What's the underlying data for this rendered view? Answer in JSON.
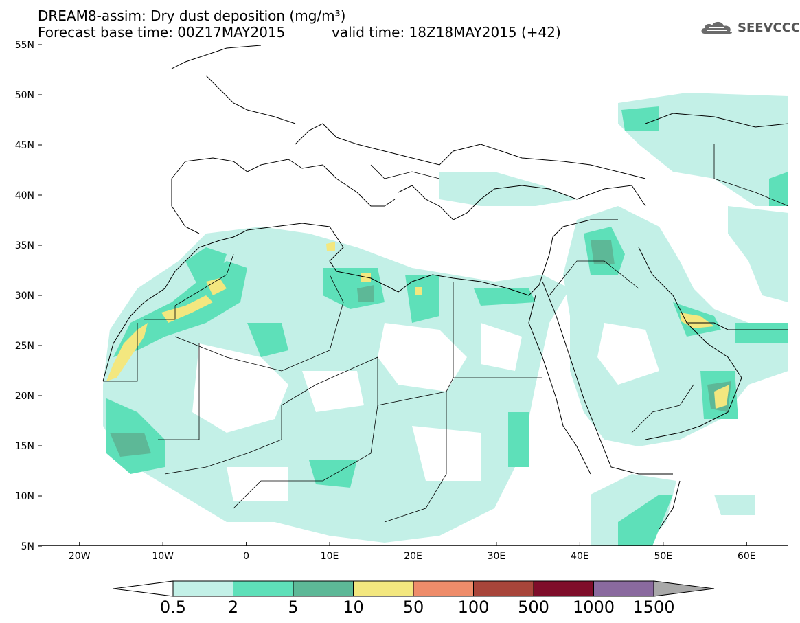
{
  "title": {
    "line1": "DREAM8-assim: Dry dust deposition (mg/m³)",
    "line2": "Forecast base time: 00Z17MAY2015",
    "valid": "valid time: 18Z18MAY2015 (+42)"
  },
  "logo": {
    "text": "SEEVCCC",
    "icon": "cloud-icon"
  },
  "map": {
    "lat_labels": [
      "55N",
      "50N",
      "45N",
      "40N",
      "35N",
      "30N",
      "25N",
      "20N",
      "15N",
      "10N",
      "5N"
    ],
    "lon_labels": [
      "20W",
      "10W",
      "0",
      "10E",
      "20E",
      "30E",
      "40E",
      "50E",
      "60E"
    ],
    "extent": {
      "lon": [
        -25,
        65
      ],
      "lat": [
        5,
        55
      ]
    }
  },
  "legend": {
    "thresholds": [
      "0.5",
      "2",
      "5",
      "10",
      "50",
      "100",
      "500",
      "1000",
      "1500"
    ],
    "colors": [
      "#c3f0e7",
      "#5ee0b9",
      "#5db897",
      "#f3e77f",
      "#ee8c6a",
      "#a8453a",
      "#7f0d2a",
      "#8a6a9f",
      "#a9a9a9"
    ],
    "under_color": "#ffffff",
    "over_color": "#a9a9a9"
  }
}
